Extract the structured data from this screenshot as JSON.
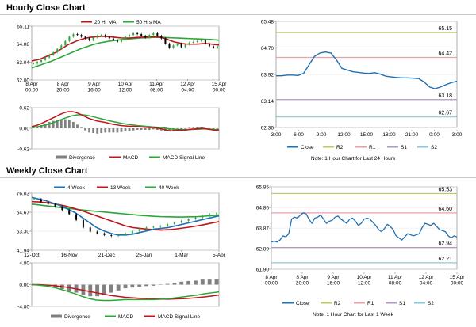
{
  "page": {
    "hourly_title": "Hourly Close Chart",
    "weekly_title": "Weekly Close Chart"
  },
  "colors": {
    "close": "#1f6fb2",
    "ma_short": "#c0141b",
    "ma_long": "#2aa836",
    "bull": "#2aa836",
    "bear": "#000000",
    "divergence": "#808080",
    "r2": "#b5cc6a",
    "r1": "#e8a0a8",
    "s1": "#b098c0",
    "s2": "#88c8d8",
    "grid_major": "#c8c8c8",
    "grid_minor": "#e6e6e6"
  },
  "chart_data": [
    {
      "id": "hourly_price",
      "type": "candlestick",
      "title": "Hourly Close Chart",
      "legend": [
        "20 Hr MA",
        "50 Hrs MA"
      ],
      "legend_position": "top-center",
      "x_labels": [
        "8 Apr\n00:00",
        "8 Apr\n20:00",
        "9 Apr\n16:00",
        "10 Apr\n12:00",
        "11 Apr\n08:00",
        "12 Apr\n04:00",
        "15 Apr\n00:00"
      ],
      "y_ticks": [
        62.0,
        63.04,
        64.08,
        65.11
      ],
      "ylim": [
        62.0,
        65.11
      ],
      "close": [
        62.95,
        63.05,
        63.15,
        63.3,
        63.45,
        63.6,
        63.8,
        64.0,
        64.25,
        64.5,
        64.65,
        64.6,
        64.5,
        64.4,
        64.3,
        64.45,
        64.55,
        64.6,
        64.5,
        64.4,
        64.3,
        64.2,
        64.35,
        64.5,
        64.6,
        64.7,
        64.65,
        64.55,
        64.45,
        64.6,
        64.7,
        64.55,
        64.4,
        64.1,
        63.85,
        64.0,
        64.1,
        63.9,
        64.05,
        64.15,
        64.2,
        64.25,
        64.3,
        64.1,
        63.95,
        63.85,
        63.95
      ],
      "ma20": [
        63.1,
        63.15,
        63.2,
        63.3,
        63.4,
        63.5,
        63.6,
        63.75,
        63.9,
        64.05,
        64.15,
        64.25,
        64.33,
        64.4,
        64.45,
        64.48,
        64.5,
        64.52,
        64.52,
        64.5,
        64.48,
        64.45,
        64.43,
        64.42,
        64.42,
        64.44,
        64.46,
        64.47,
        64.48,
        64.49,
        64.5,
        64.49,
        64.45,
        64.38,
        64.28,
        64.2,
        64.15,
        64.1,
        64.08,
        64.07,
        64.07,
        64.08,
        64.1,
        64.1,
        64.08,
        64.05,
        64.02
      ],
      "ma50": [
        62.7,
        62.78,
        62.86,
        62.94,
        63.02,
        63.1,
        63.2,
        63.3,
        63.4,
        63.5,
        63.6,
        63.7,
        63.8,
        63.88,
        63.96,
        64.04,
        64.1,
        64.16,
        64.2,
        64.24,
        64.27,
        64.3,
        64.33,
        64.35,
        64.37,
        64.39,
        64.41,
        64.43,
        64.44,
        64.45,
        64.46,
        64.46,
        64.46,
        64.45,
        64.44,
        64.43,
        64.42,
        64.41,
        64.4,
        64.39,
        64.38,
        64.37,
        64.36,
        64.35,
        64.34,
        64.32,
        64.3
      ]
    },
    {
      "id": "hourly_macd",
      "type": "macd",
      "legend": [
        "Divergence",
        "MACD",
        "MACD Signal Line"
      ],
      "legend_position": "bottom",
      "y_ticks": [
        -0.62,
        0.0,
        0.62
      ],
      "ylim": [
        -0.62,
        0.62
      ],
      "macd": [
        0.05,
        0.08,
        0.12,
        0.18,
        0.24,
        0.3,
        0.36,
        0.42,
        0.47,
        0.5,
        0.5,
        0.47,
        0.42,
        0.36,
        0.3,
        0.26,
        0.22,
        0.2,
        0.18,
        0.15,
        0.12,
        0.1,
        0.08,
        0.07,
        0.06,
        0.06,
        0.05,
        0.04,
        0.03,
        0.02,
        0.02,
        0.0,
        -0.02,
        -0.05,
        -0.08,
        -0.07,
        -0.05,
        -0.06,
        -0.05,
        -0.03,
        -0.02,
        -0.01,
        0.0,
        -0.02,
        -0.04,
        -0.06,
        -0.05
      ],
      "signal": [
        0.02,
        0.04,
        0.06,
        0.09,
        0.12,
        0.16,
        0.2,
        0.25,
        0.3,
        0.34,
        0.38,
        0.4,
        0.41,
        0.4,
        0.38,
        0.35,
        0.32,
        0.29,
        0.26,
        0.23,
        0.2,
        0.18,
        0.15,
        0.13,
        0.11,
        0.1,
        0.08,
        0.07,
        0.06,
        0.05,
        0.04,
        0.03,
        0.02,
        0.0,
        -0.02,
        -0.03,
        -0.04,
        -0.04,
        -0.04,
        -0.04,
        -0.03,
        -0.03,
        -0.02,
        -0.02,
        -0.03,
        -0.04,
        -0.04
      ]
    },
    {
      "id": "hourly_pivot",
      "type": "line",
      "title": "Note: 1 Hour Chart for Last 24 Hours",
      "x_labels": [
        "3:00",
        "6:00",
        "9:00",
        "12:00",
        "15:00",
        "18:00",
        "21:00",
        "0:00",
        "3:00"
      ],
      "y_ticks": [
        62.36,
        63.14,
        63.92,
        64.7,
        65.48
      ],
      "ylim": [
        62.36,
        65.48
      ],
      "close": [
        63.88,
        63.88,
        63.9,
        63.9,
        63.89,
        63.95,
        64.2,
        64.45,
        64.55,
        64.58,
        64.55,
        64.35,
        64.1,
        64.05,
        64.0,
        63.98,
        63.96,
        63.95,
        63.97,
        63.93,
        63.87,
        63.85,
        63.83,
        63.82,
        63.82,
        63.81,
        63.8,
        63.7,
        63.55,
        63.5,
        63.55,
        63.62,
        63.68,
        63.72
      ],
      "levels": [
        {
          "name": "R2",
          "value": 65.15
        },
        {
          "name": "R1",
          "value": 64.42
        },
        {
          "name": "S1",
          "value": 63.18
        },
        {
          "name": "S2",
          "value": 62.67
        }
      ],
      "level_labels": [
        "65.15",
        "64.42",
        "63.18",
        "62.67"
      ],
      "legend": [
        "Close",
        "R2",
        "R1",
        "S1",
        "S2"
      ]
    },
    {
      "id": "weekly_price",
      "type": "candlestick",
      "title": "Weekly Close Chart",
      "legend": [
        "4 Week",
        "13 Week",
        "40 Week"
      ],
      "legend_position": "top-center",
      "x_labels": [
        "12-Oct",
        "16-Nov",
        "21-Dec",
        "25-Jan",
        "1-Mar",
        "5-Apr"
      ],
      "y_ticks": [
        41.94,
        53.3,
        64.67,
        76.03
      ],
      "ylim": [
        41.94,
        76.03
      ],
      "close": [
        72.5,
        71.0,
        69.5,
        68.0,
        66.0,
        63.5,
        60.0,
        55.5,
        53.0,
        52.0,
        51.0,
        50.5,
        51.0,
        52.0,
        53.5,
        54.5,
        55.5,
        56.0,
        56.5,
        57.5,
        58.5,
        59.5,
        60.5,
        61.5,
        62.5,
        63.5,
        64.0
      ],
      "ma4": [
        73.5,
        72.5,
        71.5,
        70.0,
        68.5,
        66.5,
        64.5,
        61.5,
        58.5,
        55.5,
        53.5,
        52.0,
        51.0,
        51.0,
        51.5,
        52.5,
        53.5,
        54.5,
        55.0,
        55.5,
        56.5,
        57.5,
        58.5,
        59.5,
        60.5,
        61.5,
        62.5
      ],
      "ma13": [
        71.0,
        70.8,
        70.4,
        69.8,
        69.0,
        68.0,
        66.8,
        65.5,
        64.0,
        62.5,
        61.0,
        59.5,
        58.0,
        56.5,
        55.5,
        55.0,
        54.5,
        54.2,
        54.0,
        54.2,
        54.6,
        55.2,
        55.8,
        56.5,
        57.3,
        58.2,
        59.0
      ],
      "ma40": [
        69.5,
        69.0,
        68.5,
        68.0,
        67.5,
        67.0,
        66.5,
        66.0,
        65.6,
        65.2,
        64.8,
        64.4,
        64.0,
        63.6,
        63.2,
        62.8,
        62.5,
        62.2,
        62.0,
        61.9,
        61.8,
        61.8,
        61.9,
        62.0,
        62.3,
        62.6,
        63.0
      ]
    },
    {
      "id": "weekly_macd",
      "type": "macd",
      "legend": [
        "Divergence",
        "MACD",
        "MACD Signal Line"
      ],
      "legend_position": "bottom",
      "y_ticks": [
        -4.8,
        0.0,
        4.8
      ],
      "ylim": [
        -4.8,
        4.8
      ],
      "macd": [
        0.0,
        -0.1,
        -0.3,
        -0.6,
        -1.0,
        -1.5,
        -2.0,
        -2.6,
        -3.1,
        -3.4,
        -3.5,
        -3.5,
        -3.4,
        -3.3,
        -3.3,
        -3.3,
        -3.3,
        -3.3,
        -3.2,
        -3.1,
        -2.9,
        -2.7,
        -2.5,
        -2.3,
        -2.0,
        -1.8,
        -1.6
      ],
      "signal": [
        0.0,
        0.0,
        -0.1,
        -0.2,
        -0.4,
        -0.6,
        -0.9,
        -1.2,
        -1.5,
        -1.8,
        -2.1,
        -2.4,
        -2.6,
        -2.8,
        -2.9,
        -3.0,
        -3.1,
        -3.15,
        -3.2,
        -3.2,
        -3.15,
        -3.1,
        -3.0,
        -2.85,
        -2.7,
        -2.5,
        -2.3
      ]
    },
    {
      "id": "weekly_pivot",
      "type": "line",
      "title": "Note: 1 Hour Chart for Last 1 Week",
      "x_labels": [
        "8 Apr\n00:00",
        "8 Apr\n20:00",
        "9 Apr\n16:00",
        "10 Apr\n12:00",
        "11 Apr\n08:00",
        "12 Apr\n04:00",
        "15 Apr\n00:00"
      ],
      "y_ticks": [
        61.9,
        62.89,
        63.87,
        64.86,
        65.85
      ],
      "ylim": [
        61.9,
        65.85
      ],
      "close": [
        63.2,
        63.25,
        63.2,
        63.3,
        63.5,
        63.45,
        63.6,
        64.3,
        64.4,
        64.35,
        64.5,
        64.6,
        64.55,
        64.3,
        64.1,
        64.35,
        64.4,
        64.5,
        64.3,
        64.1,
        64.2,
        64.25,
        64.4,
        64.45,
        64.3,
        64.2,
        64.1,
        64.3,
        64.35,
        64.2,
        64.0,
        64.1,
        64.3,
        64.35,
        64.3,
        64.15,
        64.0,
        63.8,
        63.7,
        63.85,
        64.05,
        63.95,
        63.8,
        63.5,
        63.4,
        63.3,
        63.45,
        63.6,
        63.55,
        63.5,
        63.55,
        63.6,
        63.9,
        64.1,
        64.05,
        64.0,
        64.1,
        63.95,
        63.8,
        63.75,
        63.7,
        63.5,
        63.4,
        63.5,
        63.45
      ],
      "levels": [
        {
          "name": "R2",
          "value": 65.53
        },
        {
          "name": "R1",
          "value": 64.6
        },
        {
          "name": "S1",
          "value": 62.94
        },
        {
          "name": "S2",
          "value": 62.21
        }
      ],
      "level_labels": [
        "65.53",
        "64.60",
        "62.94",
        "62.21"
      ],
      "legend": [
        "Close",
        "R2",
        "R1",
        "S1",
        "S2"
      ]
    }
  ]
}
